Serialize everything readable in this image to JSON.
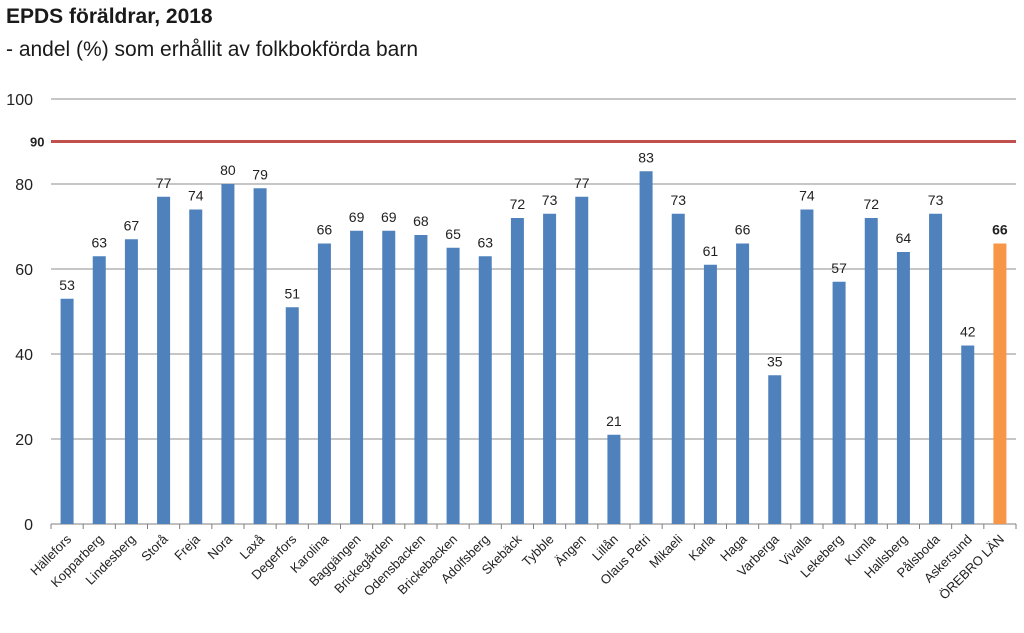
{
  "header": {
    "title": "EPDS föräldrar, 2018",
    "subtitle": "- andel (%) som erhållit av folkbokförda barn"
  },
  "chart_data": {
    "type": "bar",
    "title": "EPDS föräldrar, 2018",
    "subtitle": "- andel (%) som erhållit av folkbokförda barn",
    "xlabel": "",
    "ylabel": "",
    "ylim": [
      0,
      100
    ],
    "yticks": [
      0,
      20,
      40,
      60,
      80,
      100
    ],
    "grid": true,
    "legend": "none",
    "categories": [
      "Hällefors",
      "Kopparberg",
      "Lindesberg",
      "Storå",
      "Freja",
      "Nora",
      "Laxå",
      "Degerfors",
      "Karolina",
      "Baggängen",
      "Brickegården",
      "Odensbacken",
      "Brickebacken",
      "Adolfsberg",
      "Skebäck",
      "Tybble",
      "Ängen",
      "Lillån",
      "Olaus Petri",
      "Mikaeli",
      "Karla",
      "Haga",
      "Varberga",
      "Vivalla",
      "Lekeberg",
      "Kumla",
      "Hallsberg",
      "Pålsboda",
      "Askersund",
      "ÖREBRO LÄN"
    ],
    "values": [
      53,
      63,
      67,
      77,
      74,
      80,
      79,
      51,
      66,
      69,
      69,
      68,
      65,
      63,
      72,
      73,
      77,
      21,
      83,
      73,
      61,
      66,
      35,
      74,
      57,
      72,
      64,
      73,
      42,
      66
    ],
    "highlight_category": "ÖREBRO LÄN",
    "reference_line": {
      "value": 90,
      "label": "90"
    },
    "colors": {
      "bar": "#4f81bd",
      "highlight": "#f79646",
      "reference": "#c0504d",
      "grid": "#8c8c8c"
    }
  }
}
